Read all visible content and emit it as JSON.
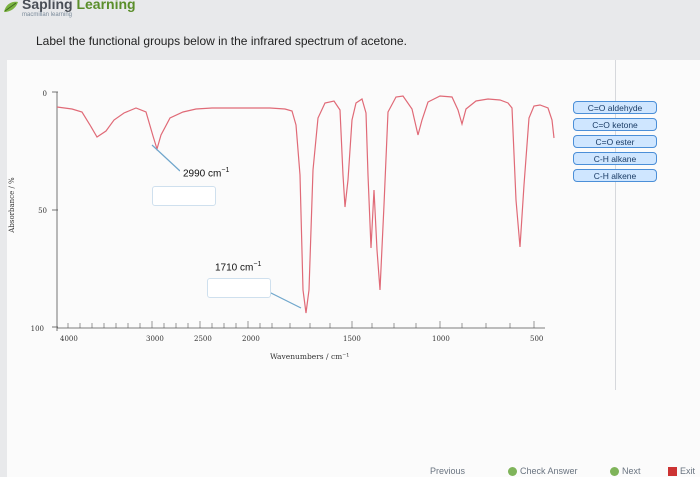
{
  "header": {
    "brand_part1": "Sapling ",
    "brand_part2": "Learning",
    "brand_sub": "macmillan learning"
  },
  "question": "Label the functional groups below in the infrared spectrum of acetone.",
  "spectrum": {
    "y_axis_label": "Absorbance / %",
    "y_ticks": [
      "0",
      "50",
      "100"
    ],
    "x_ticks": [
      "4000",
      "3000",
      "2500",
      "2000",
      "1500",
      "1000",
      "500"
    ],
    "x_axis_label": "Wavenumbers / cm⁻¹",
    "line_color": "#e06a77",
    "leader_color": "#6fa6cc"
  },
  "peak_labels": {
    "peak1_value": "2990 cm",
    "peak1_sup": "−1",
    "peak2_value": "1710 cm",
    "peak2_sup": "−1"
  },
  "palette": {
    "items": [
      "C=O aldehyde",
      "C=O ketone",
      "C=O ester",
      "C-H alkane",
      "C-H alkene"
    ]
  },
  "nav": {
    "previous": "Previous",
    "check_answer": "Check Answer",
    "next": "Next",
    "exit": "Exit"
  }
}
